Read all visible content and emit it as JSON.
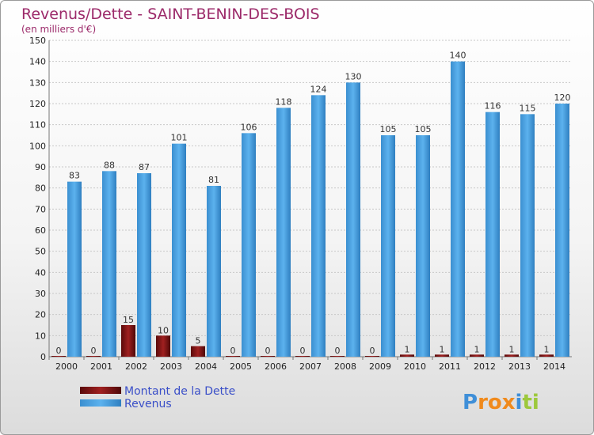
{
  "chart_data": {
    "type": "bar",
    "title": "Revenus/Dette - SAINT-BENIN-DES-BOIS",
    "subtitle": "(en milliers d'€)",
    "categories": [
      "2000",
      "2001",
      "2002",
      "2003",
      "2004",
      "2005",
      "2006",
      "2007",
      "2008",
      "2009",
      "2010",
      "2011",
      "2012",
      "2013",
      "2014"
    ],
    "series": [
      {
        "name": "Montant de la Dette",
        "color": "#7a1212",
        "values": [
          0,
          0,
          15,
          10,
          5,
          0,
          0,
          0,
          0,
          0,
          1,
          1,
          1,
          1,
          1
        ]
      },
      {
        "name": "Revenus",
        "color": "#4aa3e0",
        "values": [
          83,
          88,
          87,
          101,
          81,
          106,
          118,
          124,
          130,
          105,
          105,
          140,
          116,
          115,
          120
        ]
      }
    ],
    "ylim": [
      0,
      150
    ],
    "yticks": [
      0,
      10,
      20,
      30,
      40,
      50,
      60,
      70,
      80,
      90,
      100,
      110,
      120,
      130,
      140,
      150
    ],
    "grid": true,
    "legend_position": "bottom-left"
  },
  "logo": {
    "text": "Proxiti"
  }
}
